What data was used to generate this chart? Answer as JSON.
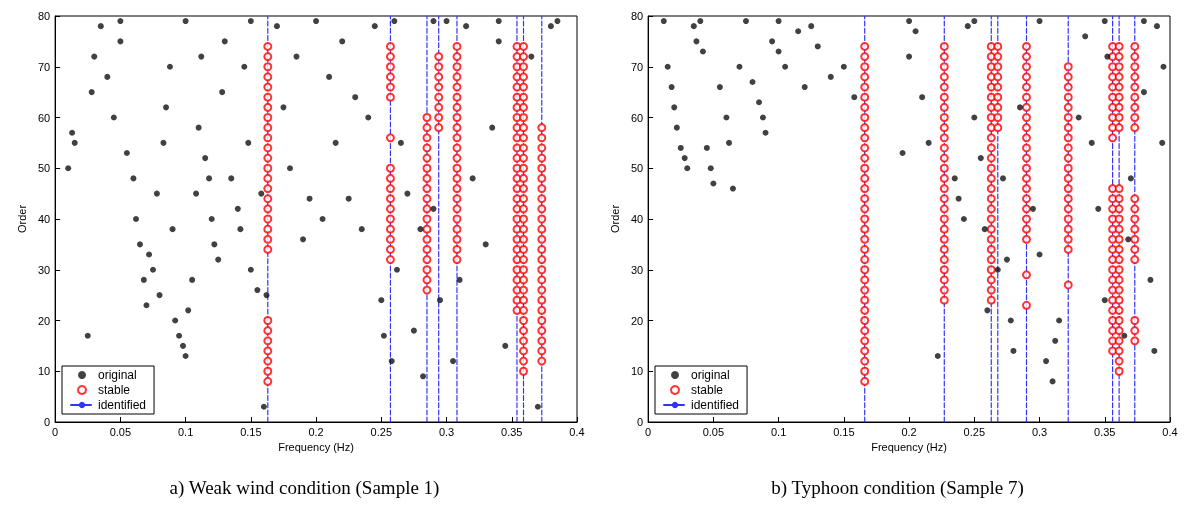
{
  "chart_data": [
    {
      "type": "scatter",
      "title": "a) Weak wind condition (Sample 1)",
      "xlabel": "Frequency (Hz)",
      "ylabel": "Order",
      "xlim": [
        0,
        0.4
      ],
      "ylim": [
        0,
        80
      ],
      "xticks": [
        0,
        0.05,
        0.1,
        0.15,
        0.2,
        0.25,
        0.3,
        0.35,
        0.4
      ],
      "yticks": [
        0,
        10,
        20,
        30,
        40,
        50,
        60,
        70,
        80
      ],
      "grid": false,
      "legend": "bottom left",
      "series": [
        {
          "name": "original",
          "color": "#111111",
          "marker": "circle",
          "x": [
            0.01,
            0.013,
            0.015,
            0.025,
            0.028,
            0.03,
            0.035,
            0.04,
            0.045,
            0.05,
            0.055,
            0.06,
            0.062,
            0.065,
            0.068,
            0.07,
            0.072,
            0.075,
            0.078,
            0.08,
            0.083,
            0.085,
            0.088,
            0.09,
            0.092,
            0.095,
            0.098,
            0.1,
            0.102,
            0.105,
            0.108,
            0.11,
            0.112,
            0.115,
            0.118,
            0.12,
            0.122,
            0.125,
            0.128,
            0.13,
            0.135,
            0.14,
            0.142,
            0.145,
            0.148,
            0.15,
            0.155,
            0.158,
            0.16,
            0.162,
            0.17,
            0.175,
            0.18,
            0.185,
            0.19,
            0.195,
            0.2,
            0.205,
            0.21,
            0.215,
            0.22,
            0.225,
            0.23,
            0.235,
            0.24,
            0.245,
            0.25,
            0.252,
            0.258,
            0.262,
            0.265,
            0.27,
            0.275,
            0.28,
            0.282,
            0.29,
            0.295,
            0.3,
            0.305,
            0.31,
            0.315,
            0.32,
            0.33,
            0.335,
            0.34,
            0.345,
            0.365,
            0.37,
            0.38,
            0.385,
            0.29,
            0.05,
            0.1,
            0.15,
            0.26,
            0.34
          ],
          "values": [
            50,
            57,
            55,
            17,
            65,
            72,
            78,
            68,
            60,
            75,
            53,
            48,
            40,
            35,
            28,
            23,
            33,
            30,
            45,
            25,
            55,
            62,
            70,
            38,
            20,
            17,
            15,
            13,
            22,
            28,
            45,
            58,
            72,
            52,
            48,
            40,
            35,
            32,
            65,
            75,
            48,
            42,
            38,
            70,
            55,
            30,
            26,
            45,
            3,
            25,
            78,
            62,
            50,
            72,
            36,
            44,
            79,
            40,
            68,
            55,
            75,
            44,
            64,
            38,
            60,
            78,
            24,
            17,
            12,
            30,
            55,
            45,
            18,
            38,
            9,
            42,
            24,
            79,
            12,
            28,
            78,
            48,
            35,
            58,
            75,
            15,
            72,
            3,
            78,
            79,
            79,
            79,
            79,
            79,
            79,
            79
          ]
        },
        {
          "name": "stable",
          "color": "#ff0000",
          "marker": "circle",
          "x": [
            0.163,
            0.163,
            0.163,
            0.163,
            0.163,
            0.163,
            0.163,
            0.163,
            0.163,
            0.163,
            0.163,
            0.163,
            0.163,
            0.163,
            0.163,
            0.163,
            0.163,
            0.163,
            0.163,
            0.163,
            0.163,
            0.163,
            0.163,
            0.163,
            0.163,
            0.163,
            0.163,
            0.163,
            0.257,
            0.257,
            0.257,
            0.257,
            0.257,
            0.257,
            0.257,
            0.257,
            0.257,
            0.257,
            0.257,
            0.257,
            0.257,
            0.257,
            0.257,
            0.257,
            0.257,
            0.285,
            0.285,
            0.285,
            0.285,
            0.285,
            0.285,
            0.285,
            0.285,
            0.285,
            0.285,
            0.285,
            0.285,
            0.285,
            0.285,
            0.285,
            0.285,
            0.285,
            0.285,
            0.294,
            0.294,
            0.294,
            0.294,
            0.294,
            0.294,
            0.294,
            0.294,
            0.308,
            0.308,
            0.308,
            0.308,
            0.308,
            0.308,
            0.308,
            0.308,
            0.308,
            0.308,
            0.308,
            0.308,
            0.308,
            0.308,
            0.308,
            0.308,
            0.308,
            0.308,
            0.308,
            0.308,
            0.308,
            0.308,
            0.354,
            0.354,
            0.354,
            0.354,
            0.354,
            0.354,
            0.354,
            0.354,
            0.354,
            0.354,
            0.354,
            0.354,
            0.354,
            0.354,
            0.354,
            0.354,
            0.354,
            0.354,
            0.354,
            0.354,
            0.354,
            0.354,
            0.354,
            0.354,
            0.354,
            0.354,
            0.354,
            0.359,
            0.359,
            0.359,
            0.359,
            0.359,
            0.359,
            0.359,
            0.359,
            0.359,
            0.359,
            0.359,
            0.359,
            0.359,
            0.359,
            0.359,
            0.359,
            0.359,
            0.359,
            0.359,
            0.359,
            0.359,
            0.359,
            0.359,
            0.359,
            0.359,
            0.359,
            0.359,
            0.359,
            0.359,
            0.359,
            0.359,
            0.359,
            0.359,
            0.373,
            0.373,
            0.373,
            0.373,
            0.373,
            0.373,
            0.373,
            0.373,
            0.373,
            0.373,
            0.373,
            0.373,
            0.373,
            0.373,
            0.373,
            0.373,
            0.373,
            0.373,
            0.373,
            0.373,
            0.373,
            0.373,
            0.373,
            0.373
          ],
          "values": [
            8,
            10,
            12,
            14,
            16,
            18,
            20,
            34,
            36,
            38,
            40,
            42,
            44,
            46,
            48,
            50,
            52,
            54,
            56,
            58,
            60,
            62,
            64,
            66,
            68,
            70,
            72,
            74,
            32,
            34,
            36,
            38,
            40,
            42,
            44,
            46,
            48,
            50,
            56,
            64,
            66,
            68,
            70,
            72,
            74,
            26,
            28,
            30,
            32,
            34,
            36,
            38,
            40,
            42,
            44,
            46,
            48,
            50,
            52,
            54,
            56,
            58,
            60,
            58,
            60,
            62,
            64,
            66,
            68,
            70,
            72,
            32,
            34,
            36,
            38,
            40,
            42,
            44,
            46,
            48,
            50,
            52,
            54,
            56,
            58,
            60,
            62,
            64,
            66,
            68,
            70,
            72,
            74,
            22,
            24,
            26,
            28,
            30,
            32,
            34,
            36,
            38,
            40,
            42,
            44,
            46,
            48,
            50,
            52,
            54,
            56,
            58,
            60,
            62,
            64,
            66,
            68,
            70,
            72,
            74,
            10,
            12,
            14,
            16,
            18,
            20,
            22,
            24,
            26,
            28,
            30,
            32,
            34,
            36,
            38,
            40,
            42,
            44,
            46,
            48,
            50,
            52,
            54,
            56,
            58,
            60,
            62,
            64,
            66,
            68,
            70,
            72,
            74,
            12,
            14,
            16,
            18,
            20,
            22,
            24,
            26,
            28,
            30,
            32,
            34,
            36,
            38,
            40,
            42,
            44,
            46,
            48,
            50,
            52,
            54,
            56,
            58
          ]
        },
        {
          "name": "identified",
          "type": "line",
          "color": "#3333ff",
          "marker": "none",
          "line_style": "dashed",
          "x": [
            0.163,
            0.163,
            null,
            0.257,
            0.257,
            null,
            0.285,
            0.285,
            null,
            0.294,
            0.294,
            null,
            0.308,
            0.308,
            null,
            0.354,
            0.354,
            null,
            0.359,
            0.359,
            null,
            0.373,
            0.373
          ],
          "values": [
            0,
            80,
            null,
            0,
            80,
            null,
            0,
            80,
            null,
            0,
            80,
            null,
            0,
            80,
            null,
            0,
            80,
            null,
            0,
            80,
            null,
            0,
            80
          ]
        }
      ]
    },
    {
      "type": "scatter",
      "title": "b) Typhoon condition (Sample 7)",
      "xlabel": "Frequency (Hz)",
      "ylabel": "Order",
      "xlim": [
        0,
        0.4
      ],
      "ylim": [
        0,
        80
      ],
      "xticks": [
        0,
        0.05,
        0.1,
        0.15,
        0.2,
        0.25,
        0.3,
        0.35,
        0.4
      ],
      "yticks": [
        0,
        10,
        20,
        30,
        40,
        50,
        60,
        70,
        80
      ],
      "grid": false,
      "legend": "bottom left",
      "series": [
        {
          "name": "original",
          "color": "#111111",
          "marker": "circle",
          "x": [
            0.012,
            0.015,
            0.018,
            0.02,
            0.022,
            0.025,
            0.028,
            0.03,
            0.035,
            0.037,
            0.04,
            0.042,
            0.045,
            0.048,
            0.05,
            0.055,
            0.06,
            0.062,
            0.065,
            0.07,
            0.075,
            0.08,
            0.085,
            0.088,
            0.09,
            0.095,
            0.1,
            0.105,
            0.115,
            0.12,
            0.125,
            0.13,
            0.14,
            0.15,
            0.158,
            0.195,
            0.2,
            0.205,
            0.21,
            0.215,
            0.235,
            0.238,
            0.242,
            0.245,
            0.25,
            0.255,
            0.258,
            0.26,
            0.272,
            0.275,
            0.278,
            0.28,
            0.285,
            0.295,
            0.3,
            0.305,
            0.31,
            0.312,
            0.315,
            0.33,
            0.335,
            0.34,
            0.345,
            0.35,
            0.352,
            0.365,
            0.368,
            0.37,
            0.38,
            0.385,
            0.388,
            0.39,
            0.395,
            0.394,
            0.1,
            0.2,
            0.25,
            0.3,
            0.35,
            0.38,
            0.222,
            0.268
          ],
          "values": [
            79,
            70,
            66,
            62,
            58,
            54,
            52,
            50,
            78,
            75,
            79,
            73,
            54,
            50,
            47,
            66,
            60,
            55,
            46,
            70,
            79,
            67,
            63,
            60,
            57,
            75,
            73,
            70,
            77,
            66,
            78,
            74,
            68,
            70,
            64,
            53,
            72,
            77,
            64,
            55,
            48,
            44,
            40,
            78,
            60,
            52,
            38,
            22,
            48,
            32,
            20,
            14,
            62,
            42,
            33,
            12,
            8,
            16,
            20,
            60,
            76,
            55,
            42,
            24,
            72,
            17,
            36,
            48,
            65,
            28,
            14,
            78,
            70,
            55,
            79,
            79,
            79,
            79,
            79,
            79,
            13,
            30
          ]
        },
        {
          "name": "stable",
          "color": "#ff0000",
          "marker": "circle",
          "x": [
            0.166,
            0.166,
            0.166,
            0.166,
            0.166,
            0.166,
            0.166,
            0.166,
            0.166,
            0.166,
            0.166,
            0.166,
            0.166,
            0.166,
            0.166,
            0.166,
            0.166,
            0.166,
            0.166,
            0.166,
            0.166,
            0.166,
            0.166,
            0.166,
            0.166,
            0.166,
            0.166,
            0.166,
            0.166,
            0.166,
            0.166,
            0.166,
            0.166,
            0.166,
            0.227,
            0.227,
            0.227,
            0.227,
            0.227,
            0.227,
            0.227,
            0.227,
            0.227,
            0.227,
            0.227,
            0.227,
            0.227,
            0.227,
            0.227,
            0.227,
            0.227,
            0.227,
            0.227,
            0.227,
            0.227,
            0.227,
            0.227,
            0.227,
            0.227,
            0.227,
            0.263,
            0.263,
            0.263,
            0.263,
            0.263,
            0.263,
            0.263,
            0.263,
            0.263,
            0.263,
            0.263,
            0.263,
            0.263,
            0.263,
            0.263,
            0.263,
            0.263,
            0.263,
            0.263,
            0.263,
            0.263,
            0.263,
            0.263,
            0.263,
            0.263,
            0.263,
            0.268,
            0.268,
            0.268,
            0.268,
            0.268,
            0.268,
            0.268,
            0.268,
            0.268,
            0.29,
            0.29,
            0.29,
            0.29,
            0.29,
            0.29,
            0.29,
            0.29,
            0.29,
            0.29,
            0.29,
            0.29,
            0.29,
            0.29,
            0.29,
            0.29,
            0.29,
            0.29,
            0.29,
            0.29,
            0.29,
            0.29,
            0.322,
            0.322,
            0.322,
            0.322,
            0.322,
            0.322,
            0.322,
            0.322,
            0.322,
            0.322,
            0.322,
            0.322,
            0.322,
            0.322,
            0.322,
            0.322,
            0.322,
            0.322,
            0.322,
            0.322,
            0.356,
            0.356,
            0.356,
            0.356,
            0.356,
            0.356,
            0.356,
            0.356,
            0.356,
            0.356,
            0.356,
            0.356,
            0.356,
            0.356,
            0.356,
            0.356,
            0.356,
            0.356,
            0.356,
            0.356,
            0.356,
            0.356,
            0.356,
            0.356,
            0.356,
            0.356,
            0.356,
            0.361,
            0.361,
            0.361,
            0.361,
            0.361,
            0.361,
            0.361,
            0.361,
            0.361,
            0.361,
            0.361,
            0.361,
            0.361,
            0.361,
            0.361,
            0.361,
            0.361,
            0.361,
            0.361,
            0.361,
            0.361,
            0.361,
            0.361,
            0.361,
            0.361,
            0.361,
            0.361,
            0.361,
            0.373,
            0.373,
            0.373,
            0.373,
            0.373,
            0.373,
            0.373,
            0.373,
            0.373,
            0.373,
            0.373,
            0.373,
            0.373,
            0.373,
            0.373,
            0.373,
            0.373,
            0.373,
            0.373
          ],
          "values": [
            8,
            10,
            12,
            14,
            16,
            18,
            20,
            22,
            24,
            26,
            28,
            30,
            32,
            34,
            36,
            38,
            40,
            42,
            44,
            46,
            48,
            50,
            52,
            54,
            56,
            58,
            60,
            62,
            64,
            66,
            68,
            70,
            72,
            74,
            24,
            26,
            28,
            30,
            32,
            34,
            36,
            38,
            40,
            42,
            44,
            46,
            48,
            50,
            52,
            54,
            56,
            58,
            60,
            62,
            64,
            66,
            68,
            70,
            72,
            74,
            24,
            26,
            28,
            30,
            32,
            34,
            36,
            38,
            40,
            42,
            44,
            46,
            48,
            50,
            52,
            54,
            56,
            58,
            60,
            62,
            64,
            66,
            68,
            70,
            72,
            74,
            58,
            60,
            62,
            64,
            66,
            68,
            70,
            72,
            74,
            23,
            29,
            36,
            38,
            40,
            42,
            44,
            46,
            48,
            50,
            52,
            54,
            56,
            58,
            60,
            62,
            64,
            66,
            68,
            70,
            72,
            74,
            27,
            34,
            36,
            38,
            40,
            42,
            44,
            46,
            48,
            50,
            52,
            54,
            56,
            58,
            60,
            62,
            64,
            66,
            68,
            70,
            14,
            16,
            18,
            20,
            22,
            24,
            26,
            28,
            30,
            32,
            34,
            36,
            38,
            40,
            42,
            44,
            46,
            56,
            58,
            60,
            62,
            64,
            66,
            68,
            70,
            72,
            74,
            10,
            12,
            14,
            16,
            18,
            20,
            22,
            24,
            26,
            28,
            30,
            32,
            34,
            36,
            38,
            40,
            42,
            44,
            46,
            58,
            60,
            62,
            64,
            66,
            68,
            70,
            72,
            74,
            16,
            18,
            20,
            32,
            34,
            36,
            38,
            40,
            42,
            44,
            58,
            60,
            62,
            64,
            66,
            68,
            70,
            72,
            74
          ]
        },
        {
          "name": "identified",
          "type": "line",
          "color": "#3333ff",
          "marker": "none",
          "line_style": "dashed",
          "x": [
            0.166,
            0.166,
            null,
            0.227,
            0.227,
            null,
            0.263,
            0.263,
            null,
            0.268,
            0.268,
            null,
            0.29,
            0.29,
            null,
            0.322,
            0.322,
            null,
            0.356,
            0.356,
            null,
            0.361,
            0.361,
            null,
            0.373,
            0.373
          ],
          "values": [
            0,
            80,
            null,
            0,
            80,
            null,
            0,
            80,
            null,
            0,
            80,
            null,
            0,
            80,
            null,
            0,
            80,
            null,
            0,
            80,
            null,
            0,
            80,
            null,
            0,
            80
          ]
        }
      ]
    }
  ]
}
